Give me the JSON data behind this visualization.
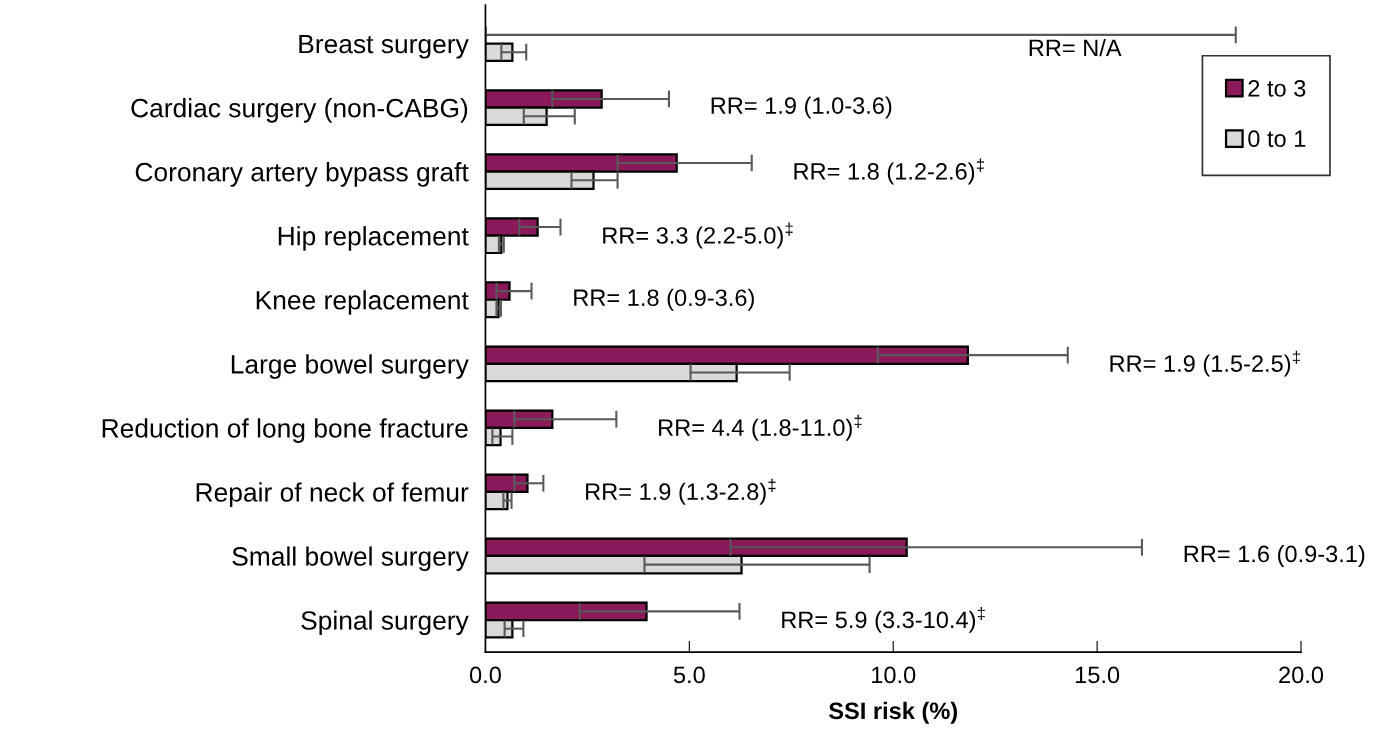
{
  "chart_data": {
    "type": "bar",
    "orientation": "horizontal",
    "xlabel": "SSI risk (%)",
    "categories": [
      "Breast surgery",
      "Cardiac surgery (non-CABG)",
      "Coronary artery bypass graft",
      "Hip replacement",
      "Knee replacement",
      "Large bowel surgery",
      "Reduction of long bone fracture",
      "Repair of neck of femur",
      "Small bowel surgery",
      "Spinal surgery"
    ],
    "series": [
      {
        "name": "2 to 3",
        "color": "#8b1a5a",
        "values": [
          0,
          2.85,
          4.69,
          1.28,
          0.59,
          11.83,
          1.64,
          1.03,
          10.33,
          3.95
        ],
        "errors": [
          [
            0,
            18.4
          ],
          [
            1.64,
            4.5
          ],
          [
            3.24,
            6.53
          ],
          [
            0.83,
            1.84
          ],
          [
            0.27,
            1.13
          ],
          [
            9.62,
            14.28
          ],
          [
            0.71,
            3.21
          ],
          [
            0.71,
            1.42
          ],
          [
            6.01,
            16.1
          ],
          [
            2.31,
            6.23
          ]
        ]
      },
      {
        "name": "0 to 1",
        "color": "#d9d9d9",
        "values": [
          0.66,
          1.5,
          2.65,
          0.39,
          0.32,
          6.16,
          0.37,
          0.54,
          6.28,
          0.66
        ],
        "errors": [
          [
            0.39,
            1.0
          ],
          [
            0.94,
            2.19
          ],
          [
            2.11,
            3.24
          ],
          [
            0.33,
            0.45
          ],
          [
            0.27,
            0.38
          ],
          [
            5.03,
            7.46
          ],
          [
            0.17,
            0.66
          ],
          [
            0.44,
            0.64
          ],
          [
            3.9,
            9.42
          ],
          [
            0.47,
            0.93
          ]
        ]
      }
    ],
    "xlim": [
      0,
      20
    ],
    "xticks": [
      {
        "value": 0,
        "label": "0.0"
      },
      {
        "value": 5,
        "label": "5.0"
      },
      {
        "value": 10,
        "label": "10.0"
      },
      {
        "value": 15,
        "label": "15.0"
      },
      {
        "value": 20,
        "label": "20.0"
      }
    ],
    "annotations": [
      "RR= N/A",
      "RR= 1.9 (1.0-3.6)",
      "RR= 1.8 (1.2-2.6)$^{‡}$",
      "RR= 3.3 (2.2-5.0)$^{‡}$",
      "RR= 1.8 (0.9-3.6)",
      "RR= 1.9 (1.5-2.5)$^{‡}$",
      "RR= 4.4 (1.8-11.0)$^{‡}$",
      "RR= 1.9 (1.3-2.8)$^{‡}$",
      "RR= 1.6 (0.9-3.1)",
      "RR= 5.9 (3.3-10.4)$^{‡}$"
    ],
    "grid": false,
    "legend": "top right"
  }
}
